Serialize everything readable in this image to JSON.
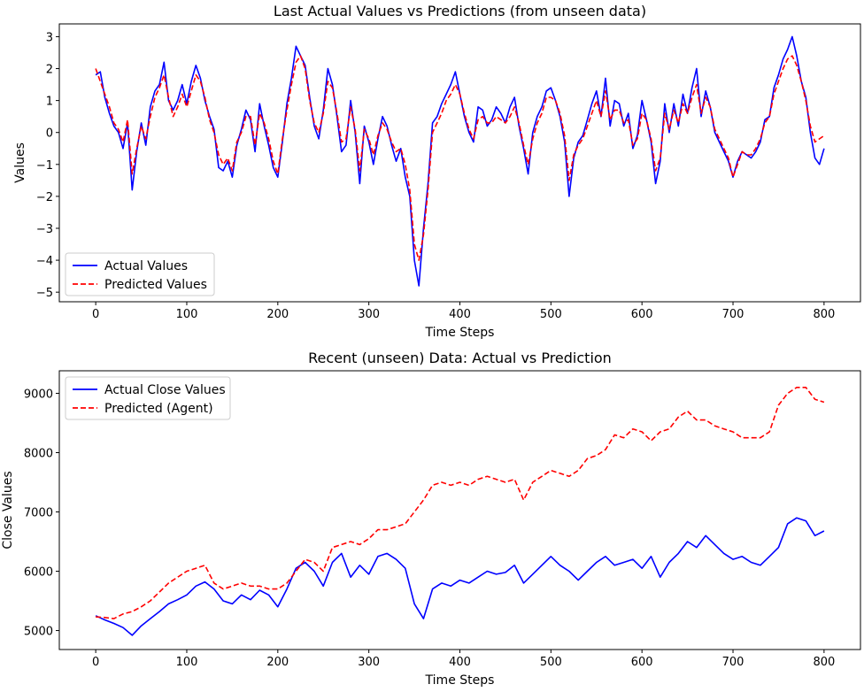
{
  "chart_data": [
    {
      "type": "line",
      "title": "Last Actual Values vs Predictions (from unseen data)",
      "xlabel": "Time Steps",
      "ylabel": "Values",
      "xlim": [
        -40,
        840
      ],
      "ylim": [
        -5.3,
        3.4
      ],
      "xticks": [
        0,
        100,
        200,
        300,
        400,
        500,
        600,
        700,
        800
      ],
      "yticks": [
        -5,
        -4,
        -3,
        -2,
        -1,
        0,
        1,
        2,
        3
      ],
      "ytick_labels": [
        "−5",
        "−4",
        "−3",
        "−2",
        "−1",
        "0",
        "1",
        "2",
        "3"
      ],
      "legend_position": "lower-left",
      "series": [
        {
          "name": "Actual Values",
          "color": "#0000ff",
          "style": "solid",
          "x": [
            0,
            5,
            10,
            15,
            20,
            25,
            30,
            35,
            40,
            45,
            50,
            55,
            60,
            65,
            70,
            75,
            80,
            85,
            90,
            95,
            100,
            105,
            110,
            115,
            120,
            125,
            130,
            135,
            140,
            145,
            150,
            155,
            160,
            165,
            170,
            175,
            180,
            185,
            190,
            195,
            200,
            205,
            210,
            215,
            220,
            225,
            230,
            235,
            240,
            245,
            250,
            255,
            260,
            265,
            270,
            275,
            280,
            285,
            290,
            295,
            300,
            305,
            310,
            315,
            320,
            325,
            330,
            335,
            340,
            345,
            350,
            355,
            360,
            365,
            370,
            375,
            380,
            385,
            390,
            395,
            400,
            405,
            410,
            415,
            420,
            425,
            430,
            435,
            440,
            445,
            450,
            455,
            460,
            465,
            470,
            475,
            480,
            485,
            490,
            495,
            500,
            505,
            510,
            515,
            520,
            525,
            530,
            535,
            540,
            545,
            550,
            555,
            560,
            565,
            570,
            575,
            580,
            585,
            590,
            595,
            600,
            605,
            610,
            615,
            620,
            625,
            630,
            635,
            640,
            645,
            650,
            655,
            660,
            665,
            670,
            675,
            680,
            685,
            690,
            695,
            700,
            705,
            710,
            715,
            720,
            725,
            730,
            735,
            740,
            745,
            750,
            755,
            760,
            765,
            770,
            775,
            780,
            785,
            790,
            795,
            800
          ],
          "y": [
            1.8,
            1.9,
            1.1,
            0.6,
            0.2,
            0.0,
            -0.5,
            0.3,
            -1.8,
            -0.6,
            0.3,
            -0.4,
            0.8,
            1.3,
            1.5,
            2.2,
            1.0,
            0.7,
            1.0,
            1.5,
            0.9,
            1.6,
            2.1,
            1.7,
            1.0,
            0.5,
            0.1,
            -1.1,
            -1.2,
            -0.9,
            -1.4,
            -0.4,
            0.1,
            0.7,
            0.4,
            -0.6,
            0.9,
            0.2,
            -0.4,
            -1.1,
            -1.4,
            -0.3,
            0.9,
            1.7,
            2.7,
            2.4,
            2.1,
            1.1,
            0.2,
            -0.2,
            0.7,
            2.0,
            1.5,
            0.5,
            -0.6,
            -0.4,
            1.0,
            0.0,
            -1.6,
            0.2,
            -0.3,
            -1.0,
            -0.2,
            0.5,
            0.2,
            -0.4,
            -0.9,
            -0.5,
            -1.4,
            -2.0,
            -4.0,
            -4.8,
            -3.0,
            -1.6,
            0.3,
            0.5,
            0.9,
            1.2,
            1.5,
            1.9,
            1.2,
            0.5,
            0.0,
            -0.3,
            0.8,
            0.7,
            0.2,
            0.4,
            0.8,
            0.6,
            0.3,
            0.8,
            1.1,
            0.2,
            -0.5,
            -1.3,
            0.0,
            0.5,
            0.8,
            1.3,
            1.4,
            1.0,
            0.5,
            -0.3,
            -2.0,
            -0.8,
            -0.3,
            -0.1,
            0.4,
            0.9,
            1.3,
            0.5,
            1.7,
            0.2,
            1.0,
            0.9,
            0.2,
            0.6,
            -0.5,
            -0.1,
            1.0,
            0.4,
            -0.3,
            -1.6,
            -0.9,
            0.9,
            0.0,
            0.9,
            0.2,
            1.2,
            0.6,
            1.4,
            2.0,
            0.5,
            1.3,
            0.8,
            0.0,
            -0.3,
            -0.6,
            -0.9,
            -1.4,
            -0.9,
            -0.6,
            -0.7,
            -0.8,
            -0.6,
            -0.3,
            0.4,
            0.5,
            1.4,
            1.8,
            2.3,
            2.6,
            3.0,
            2.4,
            1.6,
            1.1,
            0.0,
            -0.8,
            -1.0,
            -0.5
          ]
        },
        {
          "name": "Predicted Values",
          "color": "#ff0000",
          "style": "dashed",
          "x": [
            0,
            5,
            10,
            15,
            20,
            25,
            30,
            35,
            40,
            45,
            50,
            55,
            60,
            65,
            70,
            75,
            80,
            85,
            90,
            95,
            100,
            105,
            110,
            115,
            120,
            125,
            130,
            135,
            140,
            145,
            150,
            155,
            160,
            165,
            170,
            175,
            180,
            185,
            190,
            195,
            200,
            205,
            210,
            215,
            220,
            225,
            230,
            235,
            240,
            245,
            250,
            255,
            260,
            265,
            270,
            275,
            280,
            285,
            290,
            295,
            300,
            305,
            310,
            315,
            320,
            325,
            330,
            335,
            340,
            345,
            350,
            355,
            360,
            365,
            370,
            375,
            380,
            385,
            390,
            395,
            400,
            405,
            410,
            415,
            420,
            425,
            430,
            435,
            440,
            445,
            450,
            455,
            460,
            465,
            470,
            475,
            480,
            485,
            490,
            495,
            500,
            505,
            510,
            515,
            520,
            525,
            530,
            535,
            540,
            545,
            550,
            555,
            560,
            565,
            570,
            575,
            580,
            585,
            590,
            595,
            600,
            605,
            610,
            615,
            620,
            625,
            630,
            635,
            640,
            645,
            650,
            655,
            660,
            665,
            670,
            675,
            680,
            685,
            690,
            695,
            700,
            705,
            710,
            715,
            720,
            725,
            730,
            735,
            740,
            745,
            750,
            755,
            760,
            765,
            770,
            775,
            780,
            785,
            790,
            795,
            800
          ],
          "y": [
            2.0,
            1.6,
            1.2,
            0.8,
            0.3,
            0.1,
            -0.3,
            0.4,
            -1.3,
            -0.5,
            0.2,
            -0.2,
            0.5,
            1.1,
            1.4,
            1.8,
            1.1,
            0.5,
            0.8,
            1.2,
            0.8,
            1.3,
            1.8,
            1.6,
            1.1,
            0.4,
            0.0,
            -0.7,
            -1.0,
            -0.8,
            -1.2,
            -0.3,
            0.0,
            0.5,
            0.5,
            -0.4,
            0.6,
            0.3,
            -0.2,
            -0.9,
            -1.3,
            -0.2,
            0.7,
            1.5,
            2.2,
            2.4,
            2.0,
            1.0,
            0.3,
            0.0,
            0.6,
            1.6,
            1.4,
            0.6,
            -0.3,
            -0.2,
            0.8,
            0.1,
            -1.2,
            0.1,
            -0.2,
            -0.7,
            -0.1,
            0.3,
            0.1,
            -0.3,
            -0.6,
            -0.5,
            -1.0,
            -1.8,
            -3.5,
            -4.0,
            -3.2,
            -1.8,
            0.0,
            0.3,
            0.6,
            1.0,
            1.2,
            1.5,
            1.2,
            0.6,
            0.1,
            -0.2,
            0.4,
            0.5,
            0.3,
            0.3,
            0.5,
            0.4,
            0.3,
            0.5,
            0.8,
            0.3,
            -0.4,
            -1.0,
            -0.2,
            0.3,
            0.6,
            1.1,
            1.1,
            1.0,
            0.6,
            -0.1,
            -1.5,
            -0.7,
            -0.4,
            -0.2,
            0.2,
            0.6,
            1.0,
            0.5,
            1.3,
            0.4,
            0.7,
            0.7,
            0.3,
            0.4,
            -0.4,
            -0.2,
            0.6,
            0.4,
            -0.2,
            -1.2,
            -0.8,
            0.6,
            0.1,
            0.7,
            0.3,
            0.9,
            0.6,
            1.1,
            1.5,
            0.6,
            1.1,
            0.8,
            0.1,
            -0.2,
            -0.5,
            -0.8,
            -1.4,
            -1.0,
            -0.6,
            -0.7,
            -0.7,
            -0.5,
            -0.2,
            0.3,
            0.5,
            1.2,
            1.6,
            2.0,
            2.3,
            2.4,
            2.1,
            1.6,
            1.0,
            0.2,
            -0.3,
            -0.2,
            -0.1
          ]
        }
      ]
    },
    {
      "type": "line",
      "title": "Recent (unseen) Data: Actual vs Prediction",
      "xlabel": "Time Steps",
      "ylabel": "Close Values",
      "xlim": [
        -40,
        840
      ],
      "ylim": [
        4680,
        9380
      ],
      "xticks": [
        0,
        100,
        200,
        300,
        400,
        500,
        600,
        700,
        800
      ],
      "yticks": [
        5000,
        6000,
        7000,
        8000,
        9000
      ],
      "ytick_labels": [
        "5000",
        "6000",
        "7000",
        "8000",
        "9000"
      ],
      "legend_position": "upper-left",
      "series": [
        {
          "name": "Actual Close Values",
          "color": "#0000ff",
          "style": "solid",
          "x": [
            0,
            10,
            20,
            30,
            40,
            50,
            60,
            70,
            80,
            90,
            100,
            110,
            120,
            130,
            140,
            150,
            160,
            170,
            180,
            190,
            200,
            210,
            220,
            230,
            240,
            250,
            260,
            270,
            280,
            290,
            300,
            310,
            320,
            330,
            340,
            350,
            360,
            370,
            380,
            390,
            400,
            410,
            420,
            430,
            440,
            450,
            460,
            470,
            480,
            490,
            500,
            510,
            520,
            530,
            540,
            550,
            560,
            570,
            580,
            590,
            600,
            610,
            620,
            630,
            640,
            650,
            660,
            670,
            680,
            690,
            700,
            710,
            720,
            730,
            740,
            750,
            760,
            770,
            780,
            790,
            800
          ],
          "y": [
            5250,
            5180,
            5120,
            5050,
            4920,
            5080,
            5200,
            5320,
            5450,
            5520,
            5600,
            5750,
            5820,
            5700,
            5500,
            5450,
            5600,
            5520,
            5680,
            5600,
            5400,
            5700,
            6050,
            6150,
            6000,
            5750,
            6150,
            6300,
            5900,
            6100,
            5950,
            6250,
            6300,
            6200,
            6050,
            5450,
            5200,
            5700,
            5800,
            5750,
            5850,
            5800,
            5900,
            6000,
            5950,
            5980,
            6100,
            5800,
            5950,
            6100,
            6250,
            6100,
            6000,
            5850,
            6000,
            6150,
            6250,
            6100,
            6150,
            6200,
            6050,
            6250,
            5900,
            6150,
            6300,
            6500,
            6400,
            6600,
            6450,
            6300,
            6200,
            6250,
            6150,
            6100,
            6250,
            6400,
            6800,
            6900,
            6850,
            6600,
            6680
          ]
        },
        {
          "name": "Predicted (Agent)",
          "color": "#ff0000",
          "style": "dashed",
          "x": [
            0,
            10,
            20,
            30,
            40,
            50,
            60,
            70,
            80,
            90,
            100,
            110,
            120,
            130,
            140,
            150,
            160,
            170,
            180,
            190,
            200,
            210,
            220,
            230,
            240,
            250,
            260,
            270,
            280,
            290,
            300,
            310,
            320,
            330,
            340,
            350,
            360,
            370,
            380,
            390,
            400,
            410,
            420,
            430,
            440,
            450,
            460,
            470,
            480,
            490,
            500,
            510,
            520,
            530,
            540,
            550,
            560,
            570,
            580,
            590,
            600,
            610,
            620,
            630,
            640,
            650,
            660,
            670,
            680,
            690,
            700,
            710,
            720,
            730,
            740,
            750,
            760,
            770,
            780,
            790,
            800
          ],
          "y": [
            5230,
            5220,
            5200,
            5280,
            5320,
            5400,
            5500,
            5650,
            5800,
            5900,
            6000,
            6050,
            6100,
            5800,
            5700,
            5750,
            5800,
            5750,
            5750,
            5700,
            5700,
            5800,
            6000,
            6200,
            6150,
            6000,
            6400,
            6450,
            6500,
            6450,
            6550,
            6700,
            6700,
            6750,
            6800,
            7000,
            7200,
            7450,
            7500,
            7450,
            7500,
            7450,
            7550,
            7600,
            7550,
            7500,
            7550,
            7200,
            7500,
            7600,
            7700,
            7650,
            7600,
            7700,
            7900,
            7950,
            8050,
            8300,
            8250,
            8400,
            8350,
            8200,
            8350,
            8400,
            8600,
            8700,
            8550,
            8550,
            8450,
            8400,
            8350,
            8250,
            8250,
            8250,
            8350,
            8800,
            9000,
            9100,
            9100,
            8900,
            8850
          ]
        }
      ]
    }
  ]
}
